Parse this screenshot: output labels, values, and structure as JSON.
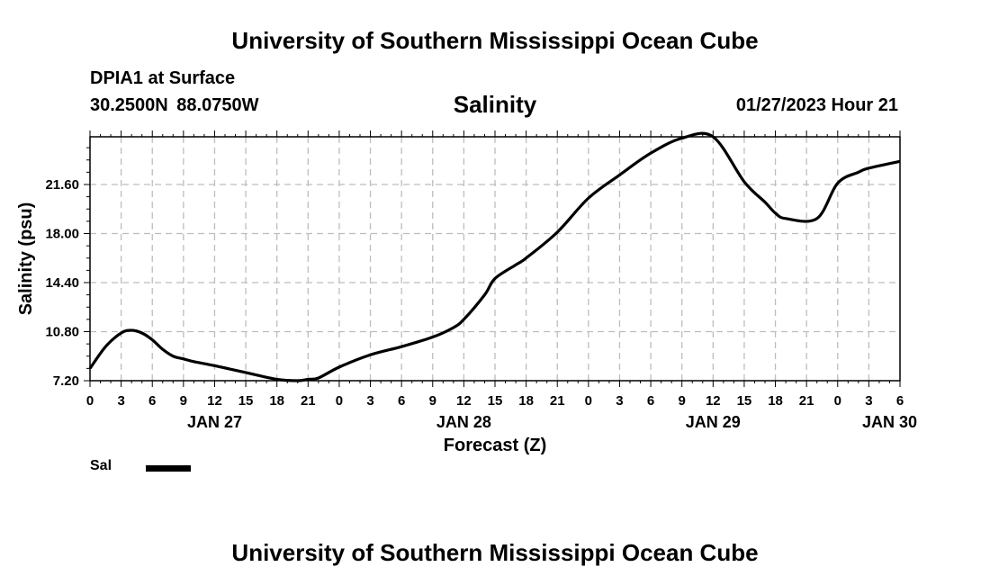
{
  "header": {
    "title": "University of Southern Mississippi Ocean Cube",
    "station": "DPIA1 at Surface",
    "coordinates": "30.2500N  88.0750W",
    "datetime": "01/27/2023 Hour 21"
  },
  "footer": {
    "title": "University of Southern Mississippi Ocean Cube"
  },
  "legend": {
    "label": "Sal",
    "color": "#000000"
  },
  "chart_data": {
    "type": "line",
    "title": "Salinity",
    "ylabel": "Salinity (psu)",
    "xlabel": "Forecast (Z)",
    "ylim": [
      7.2,
      25.1
    ],
    "xlim": [
      0,
      78
    ],
    "grid": true,
    "yticks": [
      7.2,
      10.8,
      14.4,
      18.0,
      21.6
    ],
    "ytick_labels": [
      "7.20",
      "10.80",
      "14.40",
      "18.00",
      "21.60"
    ],
    "xticks": [
      0,
      3,
      6,
      9,
      12,
      15,
      18,
      21,
      24,
      27,
      30,
      33,
      36,
      39,
      42,
      45,
      48,
      51,
      54,
      57,
      60,
      63,
      66,
      69,
      72,
      75,
      78
    ],
    "xtick_labels": [
      "0",
      "3",
      "6",
      "9",
      "12",
      "15",
      "18",
      "21",
      "0",
      "3",
      "6",
      "9",
      "12",
      "15",
      "18",
      "21",
      "0",
      "3",
      "6",
      "9",
      "12",
      "15",
      "18",
      "21",
      "0",
      "3",
      "6"
    ],
    "day_labels": [
      {
        "x": 12,
        "label": "JAN 27"
      },
      {
        "x": 36,
        "label": "JAN 28"
      },
      {
        "x": 60,
        "label": "JAN 29"
      },
      {
        "x": 77,
        "label": "JAN 30"
      }
    ],
    "series": [
      {
        "name": "Sal",
        "color": "#000000",
        "x": [
          0,
          1.5,
          3,
          4,
          5,
          6,
          7,
          8,
          9,
          10,
          12,
          15,
          18,
          20,
          21,
          22,
          24,
          27,
          30,
          33,
          35,
          36,
          38,
          39,
          41,
          42,
          45,
          48,
          51,
          54,
          57,
          60,
          63,
          65,
          66,
          67,
          70,
          72,
          74,
          75,
          78
        ],
        "values": [
          8.1,
          9.7,
          10.7,
          10.9,
          10.7,
          10.2,
          9.5,
          9.0,
          8.8,
          8.6,
          8.3,
          7.8,
          7.3,
          7.2,
          7.3,
          7.4,
          8.2,
          9.1,
          9.7,
          10.4,
          11.1,
          11.7,
          13.5,
          14.7,
          15.7,
          16.2,
          18.1,
          20.6,
          22.3,
          23.9,
          25.0,
          25.1,
          21.8,
          20.3,
          19.5,
          19.1,
          19.1,
          21.7,
          22.5,
          22.8,
          23.3
        ]
      }
    ]
  }
}
